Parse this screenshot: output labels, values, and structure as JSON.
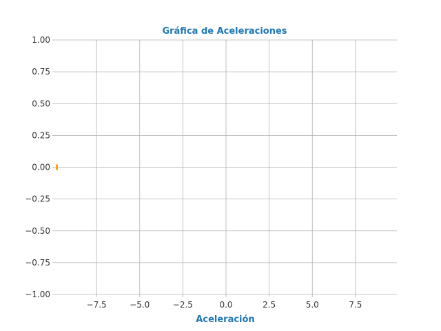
{
  "chart_data": {
    "type": "line",
    "title": "Gráfica de Aceleraciones",
    "xlabel": "Aceleración",
    "ylabel": "",
    "xlim": [
      -9.9,
      9.9
    ],
    "ylim": [
      -1.0,
      1.0
    ],
    "x_ticks": [
      -7.5,
      -5.0,
      -2.5,
      0.0,
      2.5,
      5.0,
      7.5
    ],
    "x_tick_labels": [
      "−7.5",
      "−5.0",
      "−2.5",
      "0.0",
      "2.5",
      "5.0",
      "7.5"
    ],
    "y_ticks": [
      1.0,
      0.75,
      0.5,
      0.25,
      0.0,
      -0.25,
      -0.5,
      -0.75,
      -1.0
    ],
    "y_tick_labels": [
      "1.00",
      "0.75",
      "0.50",
      "0.25",
      "0.00",
      "−0.25",
      "−0.50",
      "−0.75",
      "−1.00"
    ],
    "grid": true,
    "title_color": "#1f77b4",
    "label_color": "#1f77b4",
    "series": [
      {
        "color": "#ff9f1a",
        "x": [
          -9.8
        ],
        "y": [
          0.0
        ]
      }
    ]
  }
}
